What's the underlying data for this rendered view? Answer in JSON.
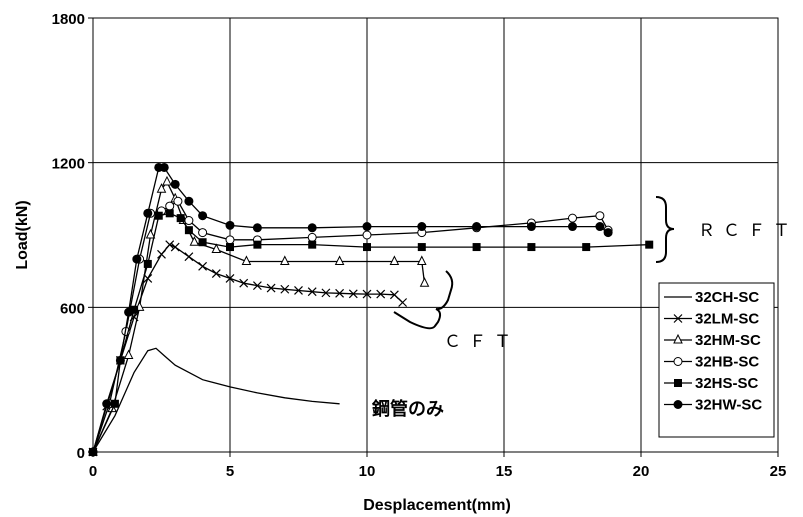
{
  "chart_data": {
    "type": "line",
    "title": "",
    "xlabel": "Desplacement(mm)",
    "ylabel": "Load(kN)",
    "xlim": [
      0,
      25
    ],
    "ylim": [
      0,
      1800
    ],
    "xticks": [
      "0",
      "5",
      "10",
      "15",
      "20",
      "25"
    ],
    "yticks": [
      "0",
      "600",
      "1200",
      "1800"
    ],
    "grid": "major gridlines",
    "legend_position": "lower-right",
    "series": [
      {
        "name": "32CH-SC",
        "marker": "none",
        "x": [
          0,
          0.8,
          1.5,
          2.0,
          2.3,
          2.6,
          3.0,
          3.5,
          4.0,
          5.0,
          6.0,
          7.0,
          8.0,
          9.0
        ],
        "y": [
          0,
          150,
          330,
          420,
          430,
          400,
          360,
          330,
          300,
          270,
          245,
          225,
          210,
          200
        ]
      },
      {
        "name": "32LM-SC",
        "marker": "x",
        "x": [
          0,
          0.5,
          1.0,
          1.5,
          2.0,
          2.5,
          2.8,
          3.0,
          3.5,
          4.0,
          4.5,
          5.0,
          5.5,
          6.0,
          6.5,
          7.0,
          7.5,
          8.0,
          8.5,
          9.0,
          9.5,
          10.0,
          10.5,
          11.0,
          11.3
        ],
        "y": [
          0,
          190,
          380,
          560,
          720,
          820,
          860,
          850,
          810,
          770,
          740,
          720,
          700,
          690,
          680,
          675,
          670,
          665,
          660,
          658,
          656,
          655,
          655,
          652,
          620
        ]
      },
      {
        "name": "32HM-SC",
        "marker": "triangle",
        "x": [
          0,
          0.7,
          1.3,
          1.7,
          2.1,
          2.5,
          2.7,
          3.0,
          3.3,
          3.7,
          4.5,
          5.6,
          7.0,
          9.0,
          11.0,
          12.0,
          12.1
        ],
        "y": [
          0,
          180,
          400,
          600,
          900,
          1090,
          1120,
          1050,
          960,
          870,
          840,
          790,
          790,
          790,
          790,
          790,
          700
        ]
      },
      {
        "name": "32HB-SC",
        "marker": "circle-open",
        "x": [
          0,
          0.6,
          1.2,
          1.7,
          2.1,
          2.5,
          2.8,
          3.1,
          3.5,
          4.0,
          5.0,
          6.0,
          8.0,
          10.0,
          12.0,
          14.0,
          16.0,
          17.5,
          18.5,
          18.8
        ],
        "y": [
          0,
          200,
          500,
          800,
          990,
          1000,
          1020,
          1040,
          960,
          910,
          880,
          880,
          890,
          900,
          910,
          930,
          950,
          970,
          980,
          920
        ]
      },
      {
        "name": "32HS-SC",
        "marker": "square",
        "x": [
          0,
          0.8,
          1.0,
          1.5,
          2.0,
          2.4,
          2.8,
          3.2,
          3.5,
          4.0,
          5.0,
          6.0,
          8.0,
          10.0,
          12.0,
          14.0,
          16.0,
          18.0,
          20.3
        ],
        "y": [
          0,
          200,
          380,
          590,
          780,
          980,
          990,
          970,
          920,
          870,
          850,
          860,
          860,
          850,
          850,
          850,
          850,
          850,
          860
        ]
      },
      {
        "name": "32HW-SC",
        "marker": "circle-filled",
        "x": [
          0,
          0.5,
          1.0,
          1.3,
          1.6,
          2.0,
          2.4,
          2.6,
          3.0,
          3.5,
          4.0,
          5.0,
          6.0,
          8.0,
          10.0,
          12.0,
          14.0,
          16.0,
          17.5,
          18.5,
          18.8
        ],
        "y": [
          0,
          200,
          380,
          580,
          800,
          990,
          1180,
          1180,
          1110,
          1040,
          980,
          940,
          930,
          930,
          935,
          935,
          935,
          935,
          935,
          935,
          910
        ]
      }
    ],
    "annotations": [
      {
        "text": "鋼管のみ"
      },
      {
        "text": "ＲＣＦＴ"
      },
      {
        "text": "ＣＦＴ"
      }
    ]
  }
}
